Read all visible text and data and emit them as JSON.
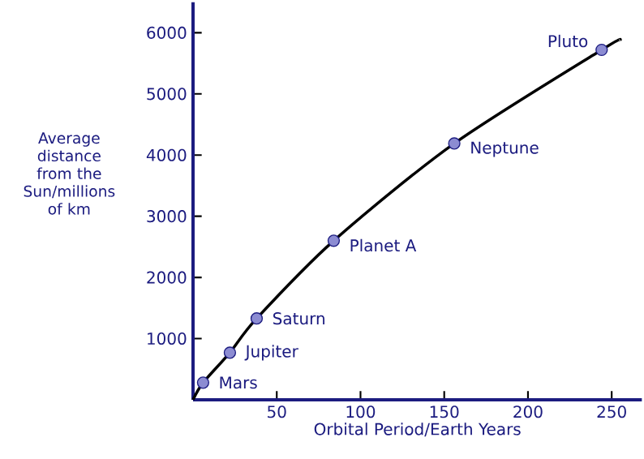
{
  "chart_data": {
    "type": "scatter",
    "xlabel": "Orbital Period/Earth Years",
    "ylabel": "Average distance from the Sun/millions of km",
    "xlim": [
      0,
      268
    ],
    "ylim": [
      0,
      6500
    ],
    "xticks": [
      50,
      100,
      150,
      200,
      250
    ],
    "yticks": [
      1000,
      2000,
      3000,
      4000,
      5000,
      6000
    ],
    "series": [
      {
        "type": "line",
        "marker": "none",
        "color": "#000000",
        "x": [
          0,
          6,
          22,
          38,
          84,
          156,
          244,
          255
        ],
        "values": [
          0,
          280,
          770,
          1330,
          2600,
          4190,
          5720,
          5880
        ]
      },
      {
        "marker": "circle",
        "color": "#8c8cd2",
        "x": [
          6,
          22,
          38,
          84,
          156,
          244
        ],
        "values": [
          280,
          770,
          1330,
          2600,
          4190,
          5720
        ]
      }
    ],
    "annotations": [
      {
        "text": "Mars",
        "x": 6,
        "y": 280
      },
      {
        "text": "Jupiter",
        "x": 22,
        "y": 770
      },
      {
        "text": "Saturn",
        "x": 38,
        "y": 1330
      },
      {
        "text": "Planet A",
        "x": 84,
        "y": 2600
      },
      {
        "text": "Neptune",
        "x": 156,
        "y": 4190
      },
      {
        "text": "Pluto",
        "x": 244,
        "y": 5720
      }
    ]
  }
}
